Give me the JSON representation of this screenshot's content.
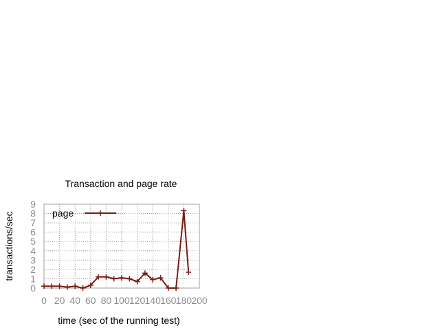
{
  "chart_data": {
    "type": "line",
    "title": "Transaction and page rate",
    "xlabel": "time (sec of the running test)",
    "ylabel": "transactions/sec",
    "xlim": [
      0,
      200
    ],
    "ylim": [
      0,
      9
    ],
    "xticks": [
      0,
      20,
      40,
      60,
      80,
      100,
      120,
      140,
      160,
      180,
      200
    ],
    "yticks": [
      0,
      1,
      2,
      3,
      4,
      5,
      6,
      7,
      8,
      9
    ],
    "grid": true,
    "legend_position": "top-left",
    "series": [
      {
        "name": "page",
        "color": "#7a1a12",
        "marker": "plus",
        "x": [
          0,
          10,
          20,
          30,
          40,
          50,
          60,
          70,
          80,
          90,
          100,
          110,
          120,
          130,
          140,
          150,
          160,
          170,
          180,
          186
        ],
        "y": [
          0.2,
          0.2,
          0.2,
          0.1,
          0.2,
          0.0,
          0.3,
          1.2,
          1.2,
          1.0,
          1.1,
          1.0,
          0.7,
          1.6,
          0.9,
          1.1,
          0.0,
          0.0,
          8.3,
          1.7
        ]
      }
    ]
  }
}
